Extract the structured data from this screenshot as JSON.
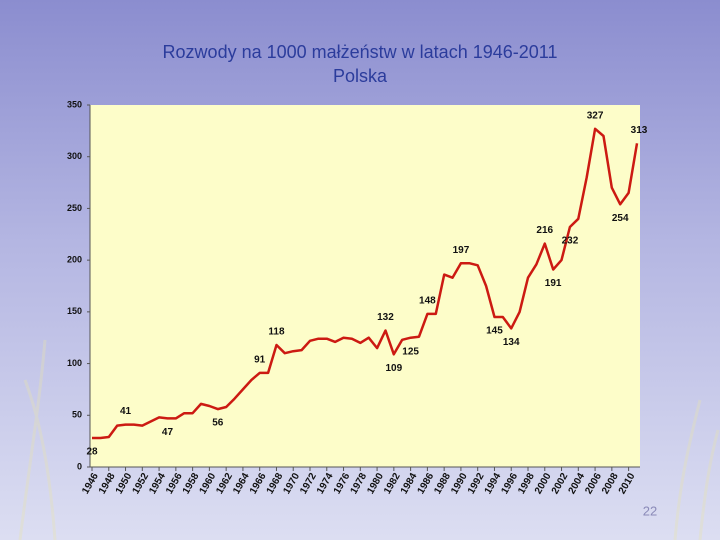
{
  "chart_data": {
    "type": "line",
    "title": "Rozwody na 1000 małżeństw w latach 1946-2011",
    "subtitle": "Polska",
    "x": [
      1946,
      1947,
      1948,
      1949,
      1950,
      1951,
      1952,
      1953,
      1954,
      1955,
      1956,
      1957,
      1958,
      1959,
      1960,
      1961,
      1962,
      1963,
      1964,
      1965,
      1966,
      1967,
      1968,
      1969,
      1970,
      1971,
      1972,
      1973,
      1974,
      1975,
      1976,
      1977,
      1978,
      1979,
      1980,
      1981,
      1982,
      1983,
      1984,
      1985,
      1986,
      1987,
      1988,
      1989,
      1990,
      1991,
      1992,
      1993,
      1994,
      1995,
      1996,
      1997,
      1998,
      1999,
      2000,
      2001,
      2002,
      2003,
      2004,
      2005,
      2006,
      2007,
      2008,
      2009,
      2010,
      2011
    ],
    "values": [
      28,
      28,
      29,
      40,
      41,
      41,
      40,
      44,
      48,
      47,
      47,
      52,
      52,
      61,
      59,
      56,
      58,
      66,
      75,
      84,
      91,
      91,
      118,
      110,
      112,
      113,
      122,
      124,
      124,
      121,
      125,
      124,
      120,
      125,
      115,
      132,
      109,
      123,
      125,
      126,
      148,
      148,
      186,
      183,
      197,
      197,
      195,
      175,
      145,
      145,
      134,
      150,
      183,
      196,
      216,
      191,
      200,
      232,
      240,
      280,
      327,
      320,
      270,
      254,
      265,
      313
    ],
    "value_labels": [
      "28",
      null,
      null,
      null,
      "41",
      null,
      null,
      null,
      null,
      "47",
      null,
      null,
      null,
      null,
      null,
      "56",
      null,
      null,
      null,
      null,
      "91",
      null,
      "118",
      null,
      null,
      null,
      null,
      null,
      null,
      null,
      null,
      null,
      null,
      null,
      null,
      "132",
      "109",
      null,
      "125",
      null,
      "148",
      null,
      null,
      null,
      "197",
      null,
      null,
      null,
      "145",
      null,
      "134",
      null,
      null,
      null,
      "216",
      "191",
      null,
      "232",
      null,
      null,
      "327",
      null,
      null,
      "254",
      null,
      "313"
    ],
    "color": "#cc1a12",
    "xlim": [
      1946,
      2011
    ],
    "xticks": [
      1946,
      1948,
      1950,
      1952,
      1954,
      1956,
      1958,
      1960,
      1962,
      1964,
      1966,
      1968,
      1970,
      1972,
      1974,
      1976,
      1978,
      1980,
      1982,
      1984,
      1986,
      1988,
      1990,
      1992,
      1994,
      1996,
      1998,
      2000,
      2002,
      2004,
      2006,
      2008,
      2010
    ],
    "ylim": [
      0,
      350
    ],
    "yticks": [
      0,
      50,
      100,
      150,
      200,
      250,
      300,
      350
    ]
  },
  "slide_number": "22"
}
